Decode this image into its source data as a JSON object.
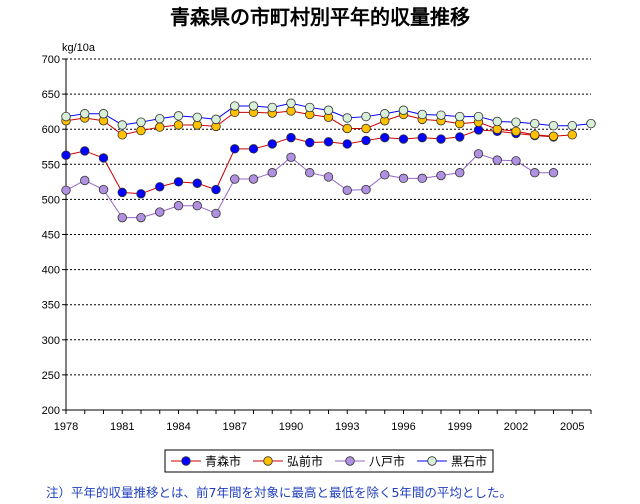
{
  "chart_data": {
    "type": "line",
    "title": "青森県の市町村別平年的収量推移",
    "ylabel": "kg/10a",
    "xlabel": "",
    "ylim": [
      200,
      700
    ],
    "yticks": [
      "200",
      "250",
      "300",
      "350",
      "400",
      "450",
      "500",
      "550",
      "600",
      "650",
      "700"
    ],
    "xlim": [
      1978,
      2006
    ],
    "xticks": [
      "1978",
      "1981",
      "1984",
      "1987",
      "1990",
      "1993",
      "1996",
      "1999",
      "2002",
      "2005"
    ],
    "grid": true,
    "legend_position": "bottom",
    "series": [
      {
        "name": "青森市",
        "color": "#0000ff",
        "line_color": "#cc0000",
        "x": [
          1978,
          1979,
          1980,
          1981,
          1982,
          1983,
          1984,
          1985,
          1986,
          1987,
          1988,
          1989,
          1990,
          1991,
          1992,
          1993,
          1994,
          1995,
          1996,
          1997,
          1998,
          1999,
          2000,
          2001,
          2002,
          2003,
          2004
        ],
        "values": [
          563,
          569,
          559,
          510,
          508,
          518,
          525,
          523,
          514,
          572,
          572,
          579,
          588,
          581,
          582,
          579,
          584,
          588,
          586,
          588,
          586,
          589,
          599,
          597,
          594,
          591,
          589
        ]
      },
      {
        "name": "弘前市",
        "color": "#ffc000",
        "line_color": "#cc0000",
        "x": [
          1978,
          1979,
          1980,
          1981,
          1982,
          1983,
          1984,
          1985,
          1986,
          1987,
          1988,
          1989,
          1990,
          1991,
          1992,
          1993,
          1994,
          1995,
          1996,
          1997,
          1998,
          1999,
          2000,
          2001,
          2002,
          2003,
          2004,
          2005
        ],
        "values": [
          612,
          616,
          612,
          592,
          598,
          603,
          606,
          606,
          604,
          624,
          624,
          623,
          626,
          621,
          617,
          601,
          601,
          612,
          621,
          614,
          612,
          608,
          610,
          600,
          597,
          592,
          590,
          592
        ]
      },
      {
        "name": "八戸市",
        "color": "#b090e0",
        "line_color": "#9966cc",
        "x": [
          1978,
          1979,
          1980,
          1981,
          1982,
          1983,
          1984,
          1985,
          1986,
          1987,
          1988,
          1989,
          1990,
          1991,
          1992,
          1993,
          1994,
          1995,
          1996,
          1997,
          1998,
          1999,
          2000,
          2001,
          2002,
          2003,
          2004
        ],
        "values": [
          513,
          527,
          514,
          474,
          474,
          482,
          491,
          491,
          480,
          529,
          529,
          538,
          560,
          538,
          532,
          513,
          514,
          535,
          530,
          530,
          534,
          538,
          565,
          556,
          555,
          538,
          538
        ]
      },
      {
        "name": "黒石市",
        "color": "#d8f0d8",
        "line_color": "#0000ff",
        "x": [
          1978,
          1979,
          1980,
          1981,
          1982,
          1983,
          1984,
          1985,
          1986,
          1987,
          1988,
          1989,
          1990,
          1991,
          1992,
          1993,
          1994,
          1995,
          1996,
          1997,
          1998,
          1999,
          2000,
          2001,
          2002,
          2003,
          2004,
          2005,
          2006
        ],
        "values": [
          618,
          622,
          622,
          606,
          610,
          615,
          619,
          617,
          614,
          633,
          633,
          631,
          637,
          631,
          627,
          616,
          618,
          622,
          627,
          621,
          620,
          618,
          618,
          611,
          610,
          608,
          605,
          605,
          608
        ]
      }
    ],
    "note": "注）平年的収量推移とは、前7年間を対象に最高と最低を除く5年間の平均とした。"
  }
}
